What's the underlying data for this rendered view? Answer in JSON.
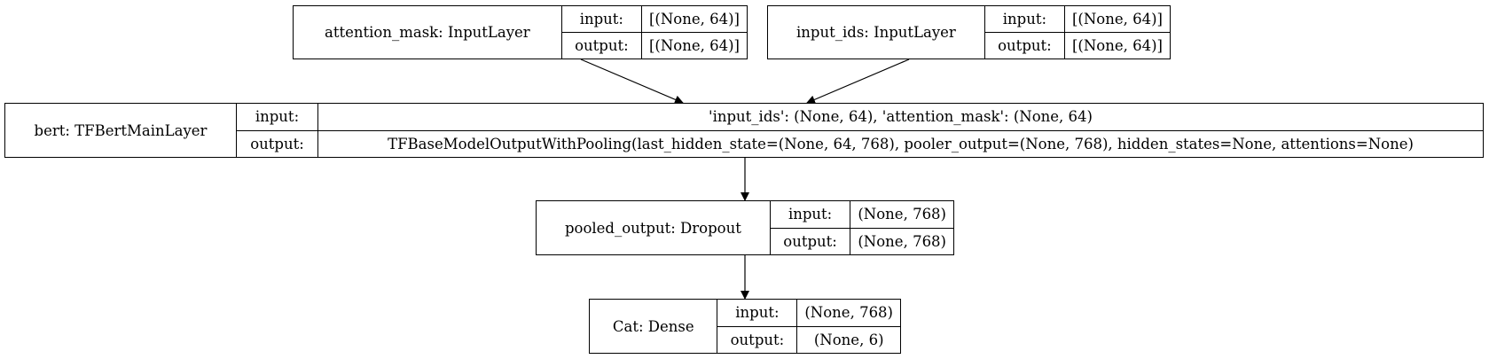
{
  "nodes": [
    {
      "name": "attention_mask: InputLayer",
      "in_label": "input:",
      "out_label": "output:",
      "input": "[(None, 64)]",
      "output": "[(None, 64)]"
    },
    {
      "name": "input_ids: InputLayer",
      "in_label": "input:",
      "out_label": "output:",
      "input": "[(None, 64)]",
      "output": "[(None, 64)]"
    },
    {
      "name": "bert: TFBertMainLayer",
      "in_label": "input:",
      "out_label": "output:",
      "input": "'input_ids': (None, 64), 'attention_mask': (None, 64)",
      "output": "TFBaseModelOutputWithPooling(last_hidden_state=(None, 64, 768), pooler_output=(None, 768), hidden_states=None, attentions=None)"
    },
    {
      "name": "pooled_output: Dropout",
      "in_label": "input:",
      "out_label": "output:",
      "input": "(None, 768)",
      "output": "(None, 768)"
    },
    {
      "name": "Cat: Dense",
      "in_label": "input:",
      "out_label": "output:",
      "input": "(None, 768)",
      "output": "(None, 6)"
    }
  ]
}
